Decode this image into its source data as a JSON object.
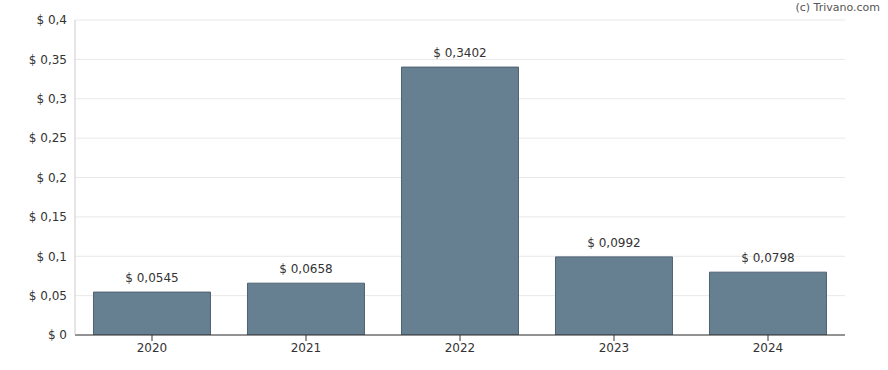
{
  "chart_data": {
    "type": "bar",
    "annotations": [
      "(c) Trivano.com"
    ],
    "categories": [
      "2020",
      "2021",
      "2022",
      "2023",
      "2024"
    ],
    "values": [
      0.0545,
      0.0658,
      0.3402,
      0.0992,
      0.0798
    ],
    "value_labels": [
      "$ 0,0545",
      "$ 0,0658",
      "$ 0,3402",
      "$ 0,0992",
      "$ 0,0798"
    ],
    "data_labels": true,
    "color": "#667f91",
    "ylim": [
      0,
      0.4
    ],
    "yticks": [
      {
        "value": 0,
        "label": "$ 0"
      },
      {
        "value": 0.05,
        "label": "$ 0,05"
      },
      {
        "value": 0.1,
        "label": "$ 0,1"
      },
      {
        "value": 0.15,
        "label": "$ 0,15"
      },
      {
        "value": 0.2,
        "label": "$ 0,2"
      },
      {
        "value": 0.25,
        "label": "$ 0,25"
      },
      {
        "value": 0.3,
        "label": "$ 0,3"
      },
      {
        "value": 0.35,
        "label": "$ 0,35"
      },
      {
        "value": 0.4,
        "label": "$ 0,4"
      }
    ],
    "grid": true
  }
}
